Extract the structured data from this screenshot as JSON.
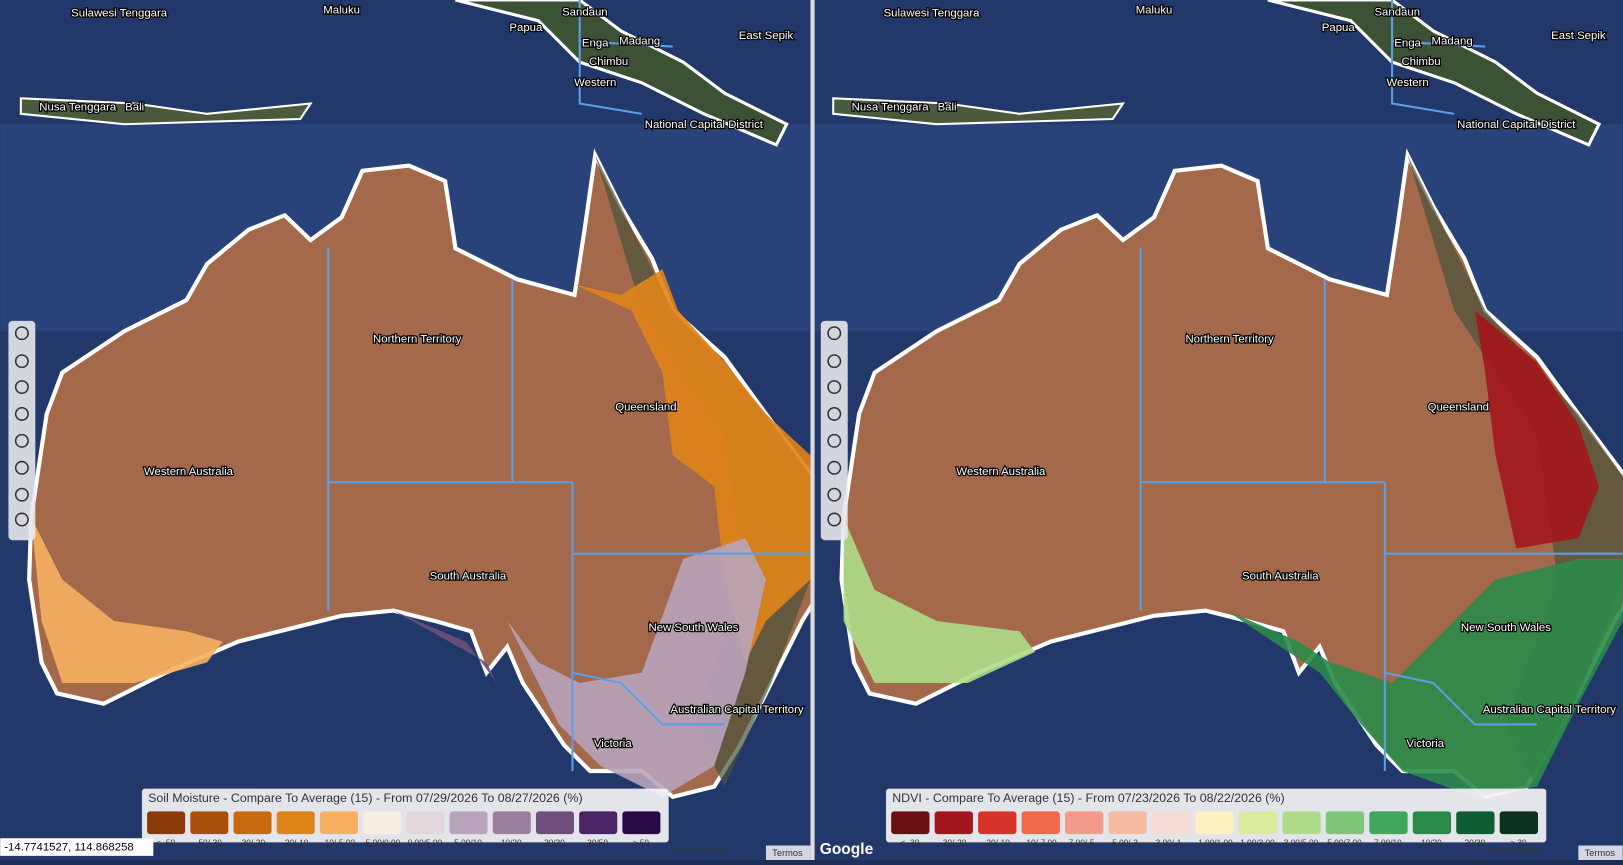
{
  "map_labels": [
    "Sulawesi Tenggara",
    "Maluku",
    "Papua",
    "Sandaun",
    "Enga",
    "Madang",
    "Chimbu",
    "Western",
    "East Sepik",
    "National Capital District",
    "Nusa Tenggara",
    "Bali",
    "Northern Territory",
    "Queensland",
    "Western Australia",
    "South Australia",
    "New South Wales",
    "Australian Capital Territory",
    "Victoria"
  ],
  "panels": [
    {
      "legend": {
        "title": "Soil Moisture - Compare To Average (15) - From 07/29/2026 To 08/27/2026 (%)",
        "items": [
          {
            "label": "< -50",
            "color": "#8b3a0a"
          },
          {
            "label": "-50/-30",
            "color": "#a8510c"
          },
          {
            "label": "-30/-20",
            "color": "#c7690f"
          },
          {
            "label": "-20/-10",
            "color": "#e0841a"
          },
          {
            "label": "-10/-5.00",
            "color": "#f6b060"
          },
          {
            "label": "-5.00/0.00",
            "color": "#f8ede4"
          },
          {
            "label": "0.00/5.00",
            "color": "#e3d6dd"
          },
          {
            "label": "5.00/10",
            "color": "#b8a4bb"
          },
          {
            "label": "10/20",
            "color": "#9a7fa0"
          },
          {
            "label": "20/30",
            "color": "#6f4e7c"
          },
          {
            "label": "30/50",
            "color": "#4a2464"
          },
          {
            "label": "> 50",
            "color": "#2a0a45"
          }
        ]
      }
    },
    {
      "legend": {
        "title": "NDVI - Compare To Average (15) - From 07/23/2026 To 08/22/2026 (%)",
        "items": [
          {
            "label": "< -30",
            "color": "#6b0f12"
          },
          {
            "label": "-30/-20",
            "color": "#a3161c"
          },
          {
            "label": "-20/-10",
            "color": "#d8322b"
          },
          {
            "label": "-10/-7.00",
            "color": "#ef6a4a"
          },
          {
            "label": "-7.00/-5...",
            "color": "#f49a8a"
          },
          {
            "label": "-5.00/-3...",
            "color": "#f7bba3"
          },
          {
            "label": "-3.00/-1...",
            "color": "#f6dcd5"
          },
          {
            "label": "-1.00/1.00",
            "color": "#fbf3bf"
          },
          {
            "label": "1.00/3.00",
            "color": "#d8ec9c"
          },
          {
            "label": "3.00/5.00",
            "color": "#aedc88"
          },
          {
            "label": "5.00/7.00",
            "color": "#7ec77a"
          },
          {
            "label": "7.00/10",
            "color": "#3fa85c"
          },
          {
            "label": "10/20",
            "color": "#2b8a4a"
          },
          {
            "label": "20/30",
            "color": "#0e5e34"
          },
          {
            "label": "> 30",
            "color": "#0b3320"
          }
        ]
      }
    }
  ],
  "coordinates": "-14.7741527, 114.868258",
  "google": "Google",
  "attribution": "©2026 NASA",
  "terms": "Termos"
}
